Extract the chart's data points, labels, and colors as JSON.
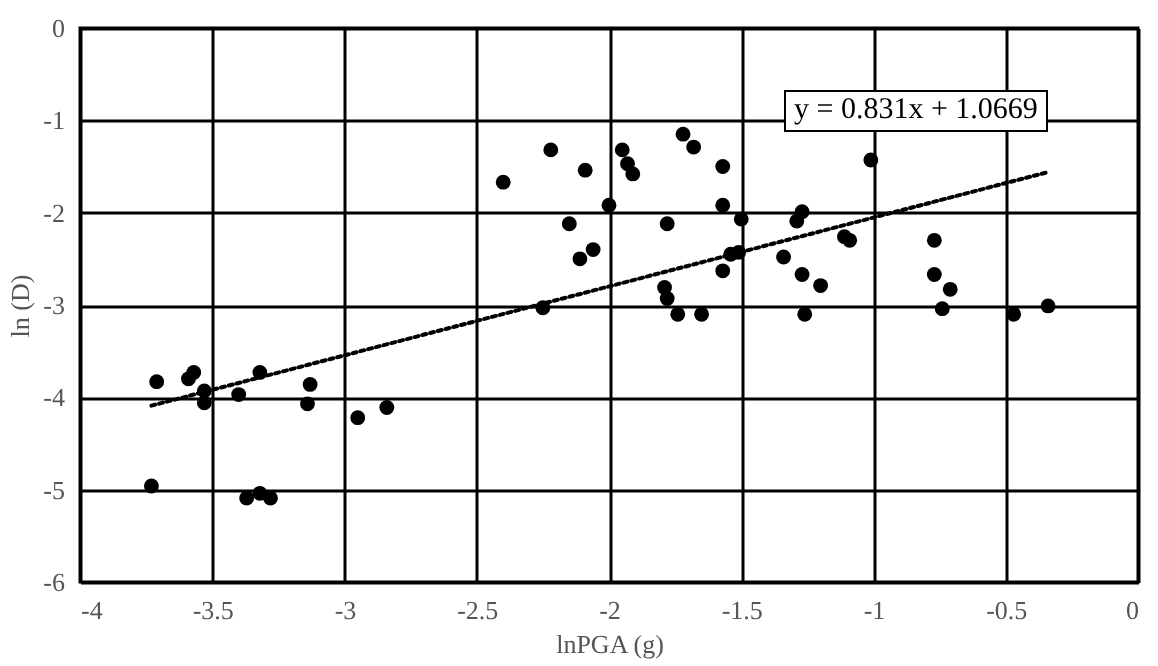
{
  "chart_data": {
    "type": "scatter",
    "xlabel": "lnPGA (g)",
    "ylabel": "ln (D)",
    "xlim": [
      -4,
      0
    ],
    "xticks": [
      -4,
      -3.5,
      -3,
      -2.5,
      -2,
      -1.5,
      -1,
      -0.5,
      0
    ],
    "ylim": [
      -6,
      0
    ],
    "yticks": [
      -6,
      -5,
      -4,
      -3,
      -2,
      -1,
      0
    ],
    "grid": true,
    "marker": "circle",
    "annotations": [
      "y = 0.831x + 1.0669"
    ],
    "series": [
      {
        "color": "#000000",
        "x": [
          -3.73,
          -3.71,
          -3.59,
          -3.57,
          -3.53,
          -3.53,
          -3.4,
          -3.32,
          -3.13,
          -3.14,
          -2.95,
          -2.84,
          -3.37,
          -3.32,
          -3.28,
          -2.4,
          -2.25,
          -2.22,
          -2.15,
          -2.11,
          -2.06,
          -2.09,
          -2.0,
          -1.95,
          -1.93,
          -1.91,
          -1.72,
          -1.68,
          -1.78,
          -1.79,
          -1.78,
          -1.74,
          -1.65,
          -1.57,
          -1.57,
          -1.57,
          -1.5,
          -1.54,
          -1.51,
          -1.34,
          -1.27,
          -1.2,
          -1.26,
          -1.29,
          -1.27,
          -1.11,
          -1.09,
          -1.01,
          -0.77,
          -0.77,
          -0.71,
          -0.74,
          -0.47,
          -0.34
        ],
        "values": [
          -4.96,
          -3.83,
          -3.8,
          -3.73,
          -3.93,
          -4.06,
          -3.97,
          -3.73,
          -3.86,
          -4.07,
          -4.22,
          -4.11,
          -5.09,
          -5.04,
          -5.09,
          -1.67,
          -3.03,
          -1.32,
          -2.12,
          -2.5,
          -2.4,
          -1.54,
          -1.92,
          -1.32,
          -1.47,
          -1.58,
          -1.15,
          -1.29,
          -2.12,
          -2.81,
          -2.93,
          -3.1,
          -3.1,
          -1.5,
          -1.92,
          -2.63,
          -2.07,
          -2.45,
          -2.43,
          -2.48,
          -2.67,
          -2.79,
          -3.1,
          -2.09,
          -1.99,
          -2.26,
          -2.3,
          -1.43,
          -2.3,
          -2.67,
          -2.83,
          -3.04,
          -3.1,
          -3.01
        ]
      },
      {
        "type": "line",
        "color": "#000000",
        "line_style": "dotted",
        "marker": "none",
        "x": [
          -3.73,
          -0.34
        ],
        "values": [
          -4.09,
          -1.56
        ]
      }
    ]
  }
}
